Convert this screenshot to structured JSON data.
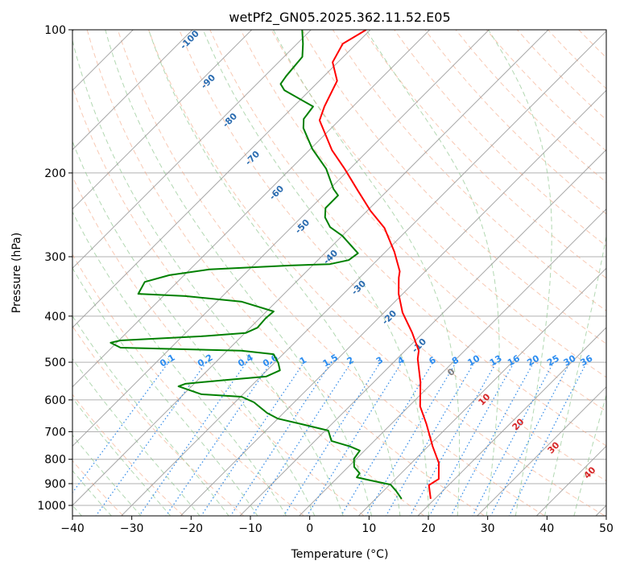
{
  "chart_data": {
    "type": "line",
    "subtype": "skew-t log-p",
    "title": "wetPf2_GN05.2025.362.11.52.E05",
    "xlabel": "Temperature (°C)",
    "ylabel": "Pressure (hPa)",
    "xlim": [
      -40,
      50
    ],
    "ylim": [
      1050,
      100
    ],
    "xticks": [
      -40,
      -30,
      -20,
      -10,
      0,
      10,
      20,
      30,
      40,
      50
    ],
    "yticks": [
      100,
      200,
      300,
      400,
      500,
      600,
      700,
      800,
      900,
      1000
    ],
    "grid": true,
    "series": [
      {
        "name": "temperature",
        "color": "#ff0000",
        "pressure": [
          100,
          107,
          117,
          128,
          145,
          155,
          179,
          196,
          217,
          240,
          261,
          293,
          322,
          332,
          359,
          393,
          433,
          473,
          492,
          551,
          619,
          675,
          752,
          814,
          880,
          907,
          969
        ],
        "values": [
          -70.7,
          -72.3,
          -70.9,
          -67.0,
          -64.8,
          -63.3,
          -56.2,
          -50.9,
          -45.2,
          -39.5,
          -34.2,
          -28.5,
          -24.3,
          -23.4,
          -20.7,
          -16.9,
          -11.9,
          -7.7,
          -6.5,
          -2.1,
          1.9,
          6.0,
          10.8,
          14.6,
          17.3,
          16.7,
          19.3
        ]
      },
      {
        "name": "dewpoint",
        "color": "#008000",
        "pressure": [
          100,
          107,
          114,
          125,
          130,
          134,
          145,
          154,
          161,
          178,
          196,
          216,
          223,
          237,
          248,
          260,
          271,
          295,
          305,
          311,
          313,
          319,
          328,
          339,
          359,
          363,
          373,
          391,
          404,
          423,
          434,
          441,
          450,
          455,
          466,
          473,
          481,
          502,
          520,
          536,
          545,
          555,
          562,
          584,
          591,
          607,
          639,
          657,
          675,
          696,
          732,
          752,
          767,
          798,
          830,
          856,
          873,
          886,
          904,
          932,
          969
        ],
        "values": [
          -81.5,
          -79.0,
          -76.9,
          -76.4,
          -76.0,
          -74.3,
          -66.7,
          -66.2,
          -64.7,
          -59.7,
          -54.0,
          -49.4,
          -47.5,
          -47.5,
          -46.0,
          -43.5,
          -40.0,
          -34.4,
          -34.8,
          -37.3,
          -43.8,
          -56.7,
          -62.5,
          -65.5,
          -64.6,
          -56.3,
          -45.8,
          -38.8,
          -39.0,
          -38.8,
          -39.9,
          -46.8,
          -59.7,
          -61.0,
          -58.5,
          -37.6,
          -31.6,
          -29.3,
          -27.8,
          -29.1,
          -35.4,
          -41.5,
          -42.2,
          -37.0,
          -29.8,
          -26.8,
          -22.8,
          -20.0,
          -15.0,
          -9.5,
          -7.2,
          -3.1,
          -0.8,
          -0.4,
          1.0,
          3.0,
          3.2,
          6.0,
          10.1,
          12.1,
          14.4
        ]
      }
    ],
    "adiabat_labels": [
      "-100",
      "-90",
      "-80",
      "-70",
      "-60",
      "-50",
      "-40",
      "-30",
      "-20",
      "-10",
      "0",
      "10",
      "20",
      "30",
      "40"
    ],
    "mixing_ratio_labels": [
      "0.1",
      "0.2",
      "0.4",
      "0.6",
      "1",
      "1.5",
      "2",
      "3",
      "4",
      "6",
      "8",
      "10",
      "13",
      "16",
      "20",
      "25",
      "30",
      "36"
    ],
    "colors": {
      "isotherm": "#999999",
      "dry_adiabat": "#f4a582",
      "moist_adiabat": "#92c892",
      "mixing_ratio": "#3a8fe8",
      "label_negative": "#2b6cb0",
      "label_zero": "#808080",
      "label_positive": "#d62728"
    }
  }
}
